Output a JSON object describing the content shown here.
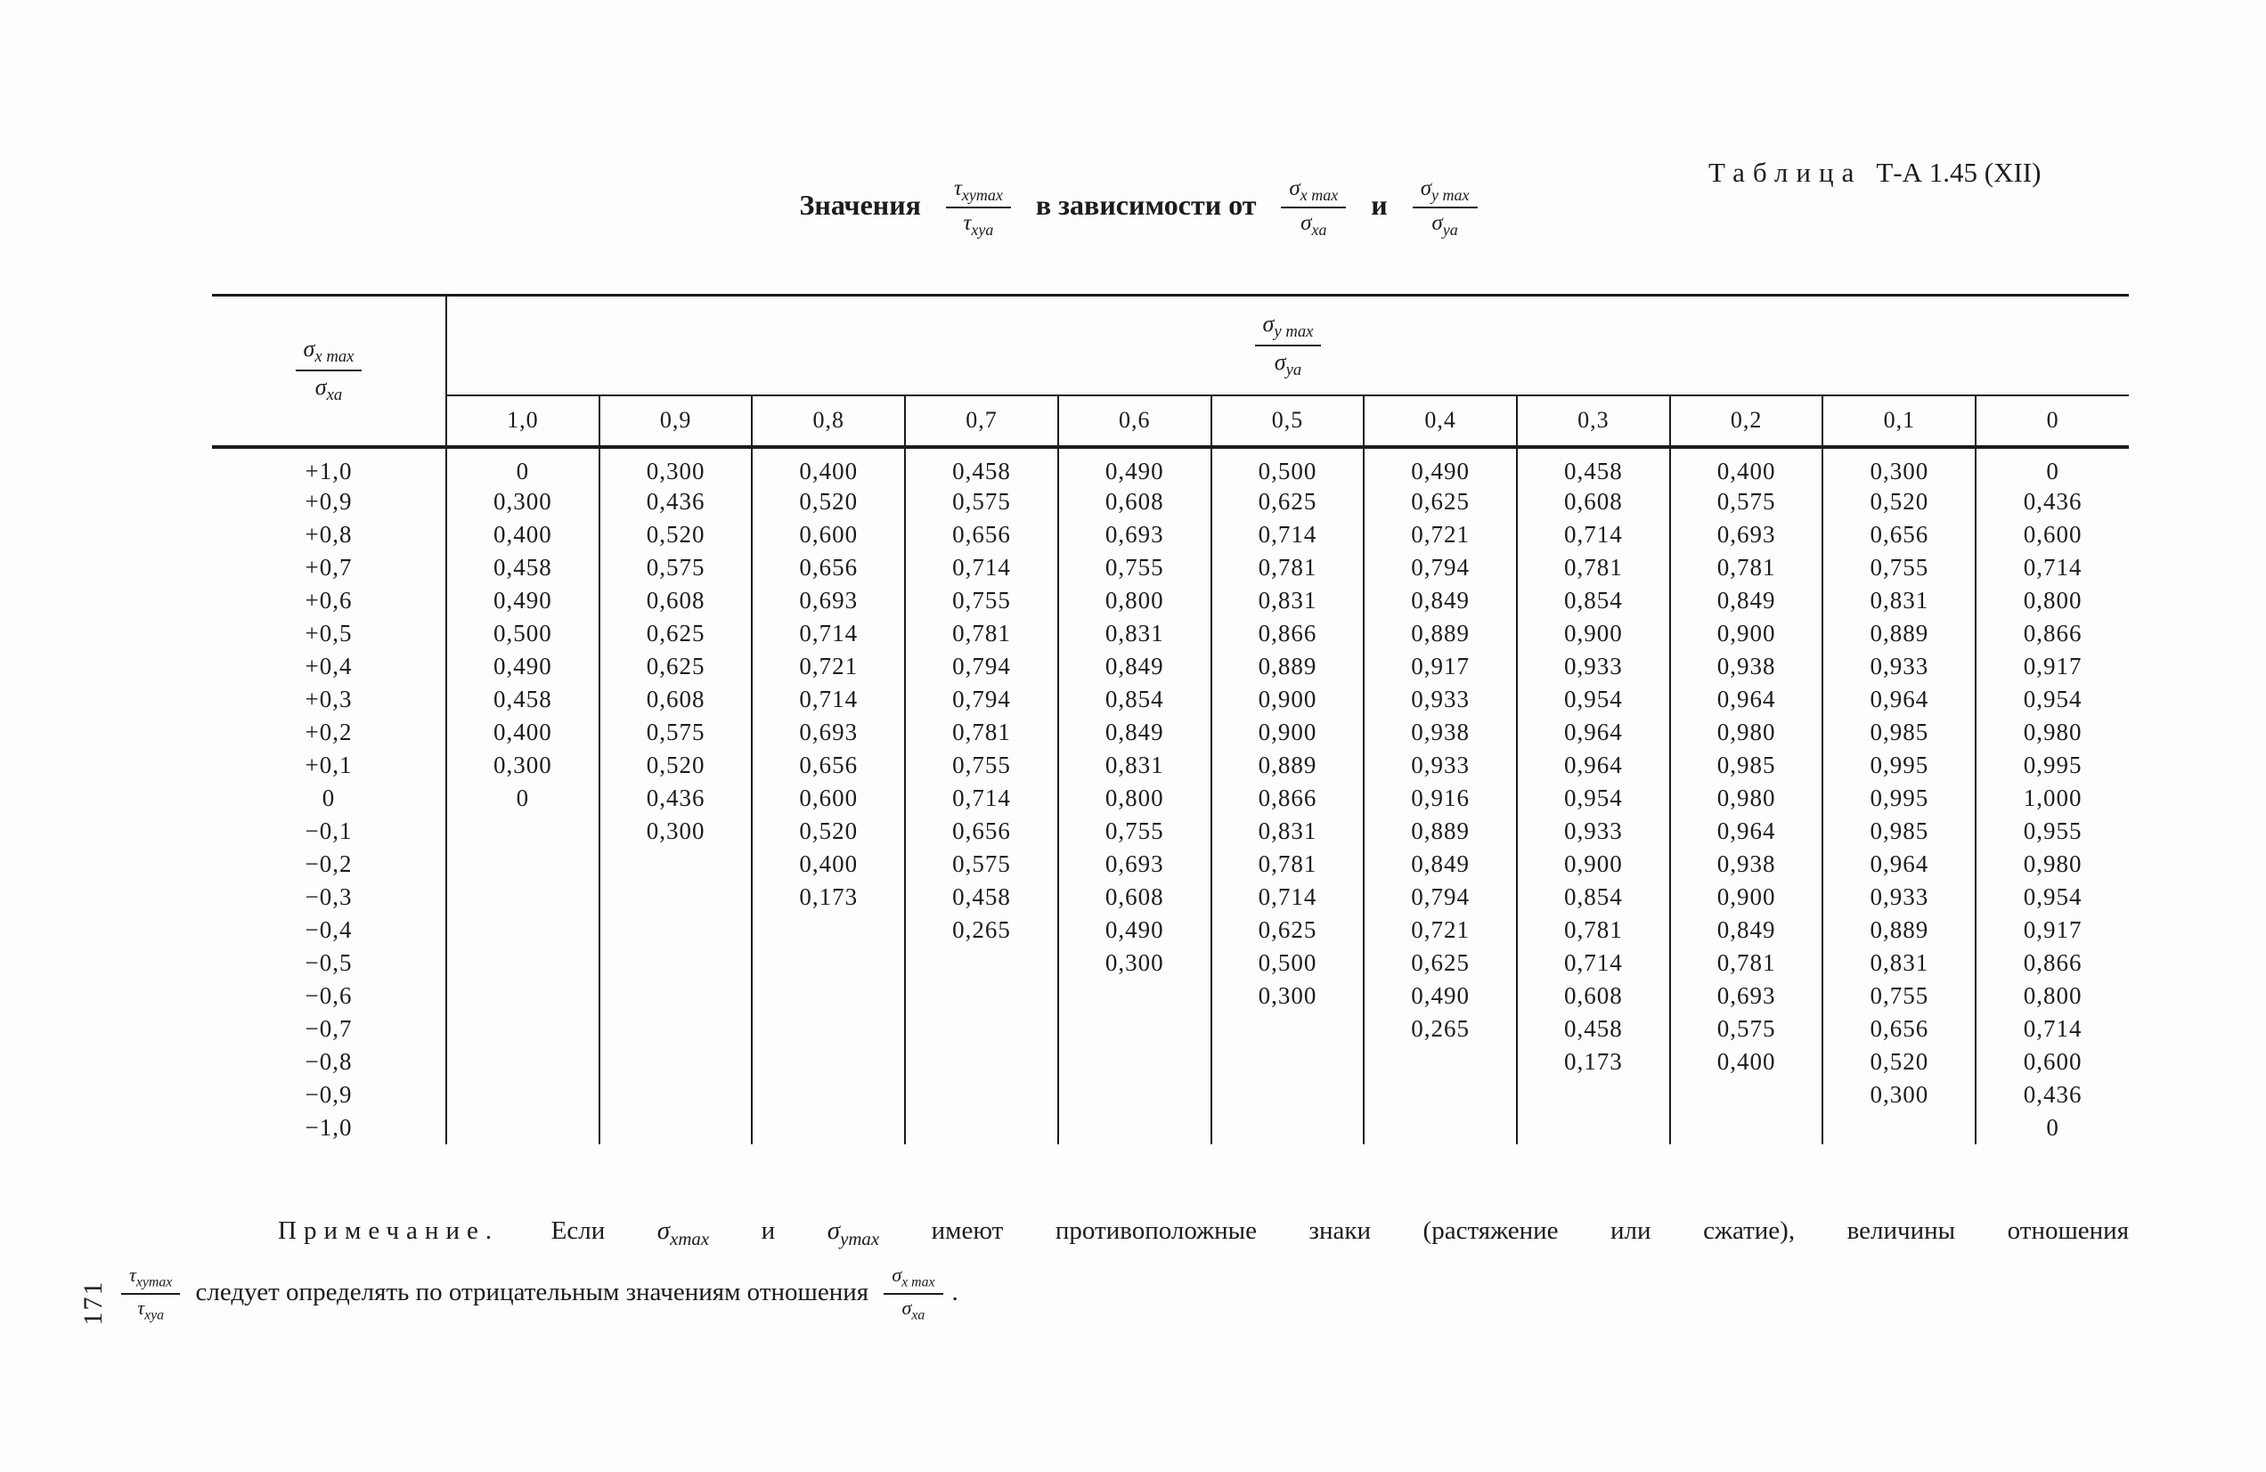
{
  "document": {
    "caption": {
      "word": "Таблица",
      "number": "Т-А 1.45 (XII)"
    },
    "page_number": "171"
  },
  "title": {
    "word1": "Значения",
    "word2": "в зависимости от",
    "word3": "и",
    "frac_tau": {
      "num_base": "τ",
      "num_sub": "xymax",
      "den_base": "τ",
      "den_sub": "xya"
    },
    "frac_sigma_x": {
      "num_base": "σ",
      "num_sub": "x max",
      "den_base": "σ",
      "den_sub": "xa"
    },
    "frac_sigma_y": {
      "num_base": "σ",
      "num_sub": "y max",
      "den_base": "σ",
      "den_sub": "ya"
    }
  },
  "table": {
    "stub_fraction": {
      "num_base": "σ",
      "num_sub": "x max",
      "den_base": "σ",
      "den_sub": "xa"
    },
    "group_fraction": {
      "num_base": "σ",
      "num_sub": "y max",
      "den_base": "σ",
      "den_sub": "ya"
    },
    "columns": [
      "1,0",
      "0,9",
      "0,8",
      "0,7",
      "0,6",
      "0,5",
      "0,4",
      "0,3",
      "0,2",
      "0,1",
      "0"
    ],
    "rows": [
      {
        "label": "+1,0",
        "cells": [
          "0",
          "0,300",
          "0,400",
          "0,458",
          "0,490",
          "0,500",
          "0,490",
          "0,458",
          "0,400",
          "0,300",
          "0"
        ]
      },
      {
        "label": "+0,9",
        "cells": [
          "0,300",
          "0,436",
          "0,520",
          "0,575",
          "0,608",
          "0,625",
          "0,625",
          "0,608",
          "0,575",
          "0,520",
          "0,436"
        ]
      },
      {
        "label": "+0,8",
        "cells": [
          "0,400",
          "0,520",
          "0,600",
          "0,656",
          "0,693",
          "0,714",
          "0,721",
          "0,714",
          "0,693",
          "0,656",
          "0,600"
        ]
      },
      {
        "label": "+0,7",
        "cells": [
          "0,458",
          "0,575",
          "0,656",
          "0,714",
          "0,755",
          "0,781",
          "0,794",
          "0,781",
          "0,781",
          "0,755",
          "0,714"
        ]
      },
      {
        "label": "+0,6",
        "cells": [
          "0,490",
          "0,608",
          "0,693",
          "0,755",
          "0,800",
          "0,831",
          "0,849",
          "0,854",
          "0,849",
          "0,831",
          "0,800"
        ]
      },
      {
        "label": "+0,5",
        "cells": [
          "0,500",
          "0,625",
          "0,714",
          "0,781",
          "0,831",
          "0,866",
          "0,889",
          "0,900",
          "0,900",
          "0,889",
          "0,866"
        ]
      },
      {
        "label": "+0,4",
        "cells": [
          "0,490",
          "0,625",
          "0,721",
          "0,794",
          "0,849",
          "0,889",
          "0,917",
          "0,933",
          "0,938",
          "0,933",
          "0,917"
        ]
      },
      {
        "label": "+0,3",
        "cells": [
          "0,458",
          "0,608",
          "0,714",
          "0,794",
          "0,854",
          "0,900",
          "0,933",
          "0,954",
          "0,964",
          "0,964",
          "0,954"
        ]
      },
      {
        "label": "+0,2",
        "cells": [
          "0,400",
          "0,575",
          "0,693",
          "0,781",
          "0,849",
          "0,900",
          "0,938",
          "0,964",
          "0,980",
          "0,985",
          "0,980"
        ]
      },
      {
        "label": "+0,1",
        "cells": [
          "0,300",
          "0,520",
          "0,656",
          "0,755",
          "0,831",
          "0,889",
          "0,933",
          "0,964",
          "0,985",
          "0,995",
          "0,995"
        ]
      },
      {
        "label": "0",
        "cells": [
          "0",
          "0,436",
          "0,600",
          "0,714",
          "0,800",
          "0,866",
          "0,916",
          "0,954",
          "0,980",
          "0,995",
          "1,000"
        ]
      },
      {
        "label": "−0,1",
        "cells": [
          "",
          "0,300",
          "0,520",
          "0,656",
          "0,755",
          "0,831",
          "0,889",
          "0,933",
          "0,964",
          "0,985",
          "0,955"
        ]
      },
      {
        "label": "−0,2",
        "cells": [
          "",
          "",
          "0,400",
          "0,575",
          "0,693",
          "0,781",
          "0,849",
          "0,900",
          "0,938",
          "0,964",
          "0,980"
        ]
      },
      {
        "label": "−0,3",
        "cells": [
          "",
          "",
          "0,173",
          "0,458",
          "0,608",
          "0,714",
          "0,794",
          "0,854",
          "0,900",
          "0,933",
          "0,954"
        ]
      },
      {
        "label": "−0,4",
        "cells": [
          "",
          "",
          "",
          "0,265",
          "0,490",
          "0,625",
          "0,721",
          "0,781",
          "0,849",
          "0,889",
          "0,917"
        ]
      },
      {
        "label": "−0,5",
        "cells": [
          "",
          "",
          "",
          "",
          "0,300",
          "0,500",
          "0,625",
          "0,714",
          "0,781",
          "0,831",
          "0,866"
        ]
      },
      {
        "label": "−0,6",
        "cells": [
          "",
          "",
          "",
          "",
          "",
          "0,300",
          "0,490",
          "0,608",
          "0,693",
          "0,755",
          "0,800"
        ]
      },
      {
        "label": "−0,7",
        "cells": [
          "",
          "",
          "",
          "",
          "",
          "",
          "0,265",
          "0,458",
          "0,575",
          "0,656",
          "0,714"
        ]
      },
      {
        "label": "−0,8",
        "cells": [
          "",
          "",
          "",
          "",
          "",
          "",
          "",
          "0,173",
          "0,400",
          "0,520",
          "0,600"
        ]
      },
      {
        "label": "−0,9",
        "cells": [
          "",
          "",
          "",
          "",
          "",
          "",
          "",
          "",
          "",
          "0,300",
          "0,436"
        ]
      },
      {
        "label": "−1,0",
        "cells": [
          "",
          "",
          "",
          "",
          "",
          "",
          "",
          "",
          "",
          "",
          "0"
        ]
      }
    ]
  },
  "note": {
    "label": "Примечание.",
    "t1": "Если",
    "sigma1_base": "σ",
    "sigma1_sub": "xmax",
    "t2": "и",
    "sigma2_base": "σ",
    "sigma2_sub": "ymax",
    "t3": "имеют противоположные знаки (растяжение или сжатие), величины отношения",
    "frac_tau": {
      "num_base": "τ",
      "num_sub": "xymax",
      "den_base": "τ",
      "den_sub": "xya"
    },
    "t4": "следует определять по отрицательным значениям отношения",
    "frac_sigma": {
      "num_base": "σ",
      "num_sub": "x max",
      "den_base": "σ",
      "den_sub": "xa"
    },
    "t5": "."
  }
}
